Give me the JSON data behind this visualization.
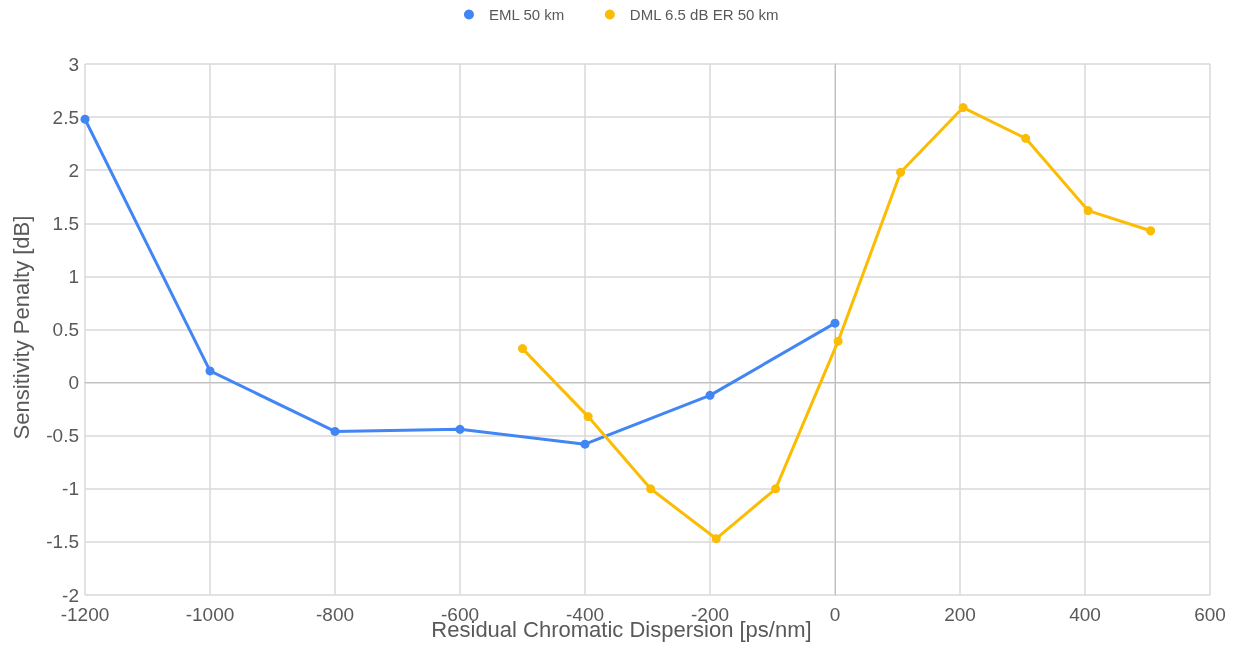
{
  "chart_data": {
    "type": "line",
    "xlabel": "Residual Chromatic Dispersion [ps/nm]",
    "ylabel": "Sensitivity Penalty [dB]",
    "xlim": [
      -1200,
      600
    ],
    "xticks": [
      -1200,
      -1000,
      -800,
      -600,
      -400,
      -200,
      0,
      200,
      400,
      600
    ],
    "ylim": [
      -2,
      3
    ],
    "yticks": [
      -2,
      -1.5,
      -1,
      -0.5,
      0,
      0.5,
      1,
      1.5,
      2,
      2.5,
      3
    ],
    "grid": true,
    "legend": "top",
    "marker": "circle",
    "line_style": "solid",
    "series": [
      {
        "name": "EML 50 km",
        "color": "#4285f4",
        "x": [
          -1200,
          -1000,
          -800,
          -600,
          -400,
          -200,
          0
        ],
        "values": [
          2.48,
          0.11,
          -0.46,
          -0.44,
          -0.58,
          -0.12,
          0.56
        ]
      },
      {
        "name": "DML 6.5 dB ER 50 km",
        "color": "#fbbc04",
        "x": [
          -500,
          -395,
          -295,
          -190,
          -95,
          5,
          105,
          205,
          305,
          405,
          505
        ],
        "values": [
          0.32,
          -0.32,
          -1.0,
          -1.47,
          -1.0,
          0.39,
          1.98,
          2.59,
          2.3,
          1.62,
          1.43
        ]
      }
    ]
  }
}
